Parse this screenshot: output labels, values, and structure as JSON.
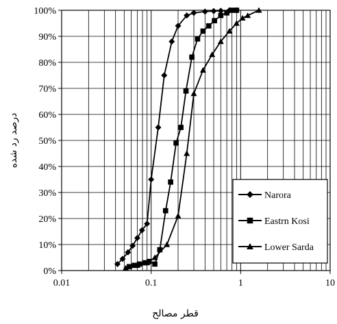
{
  "chart_data": {
    "type": "line",
    "title": "",
    "xlabel": "قطر مصالح",
    "ylabel": "درصد رد شده",
    "x_scale": "log",
    "xlim": [
      0.01,
      10
    ],
    "ylim": [
      0,
      100
    ],
    "x_ticks": [
      "0.01",
      "0.1",
      "1",
      "10"
    ],
    "y_ticks": [
      "0%",
      "10%",
      "20%",
      "30%",
      "40%",
      "50%",
      "60%",
      "70%",
      "80%",
      "90%",
      "100%"
    ],
    "grid": true,
    "legend_position": "bottom-right",
    "series": [
      {
        "name": "Narora",
        "marker": "diamond",
        "color": "#000000",
        "x": [
          0.042,
          0.048,
          0.055,
          0.062,
          0.07,
          0.079,
          0.09,
          0.1,
          0.12,
          0.14,
          0.17,
          0.2,
          0.25,
          0.3,
          0.4,
          0.5,
          0.6,
          0.75,
          0.9
        ],
        "y": [
          2.5,
          4.5,
          7,
          9.5,
          12.5,
          15.5,
          18,
          35,
          55,
          75,
          88,
          94,
          98,
          99,
          99.5,
          99.7,
          99.8,
          100,
          100
        ]
      },
      {
        "name": "Eastrn Kosi",
        "marker": "square",
        "color": "#000000",
        "x": [
          0.057,
          0.065,
          0.074,
          0.085,
          0.095,
          0.11,
          0.125,
          0.145,
          0.165,
          0.19,
          0.215,
          0.245,
          0.285,
          0.33,
          0.38,
          0.44,
          0.51,
          0.6,
          0.7,
          0.8,
          0.9
        ],
        "y": [
          1.5,
          2,
          2.5,
          3,
          3.5,
          2.5,
          8,
          23,
          34,
          49,
          55,
          69,
          82,
          89,
          92,
          94,
          96,
          98,
          99,
          100,
          100
        ]
      },
      {
        "name": "Lower Sarda",
        "marker": "triangle",
        "color": "#000000",
        "x": [
          0.052,
          0.07,
          0.09,
          0.11,
          0.15,
          0.2,
          0.25,
          0.3,
          0.38,
          0.48,
          0.6,
          0.75,
          0.9,
          1.05,
          1.2,
          1.6
        ],
        "y": [
          1,
          2,
          3,
          5,
          10,
          21,
          45,
          68,
          77,
          83,
          88,
          92,
          95,
          97,
          98,
          100
        ]
      }
    ]
  }
}
